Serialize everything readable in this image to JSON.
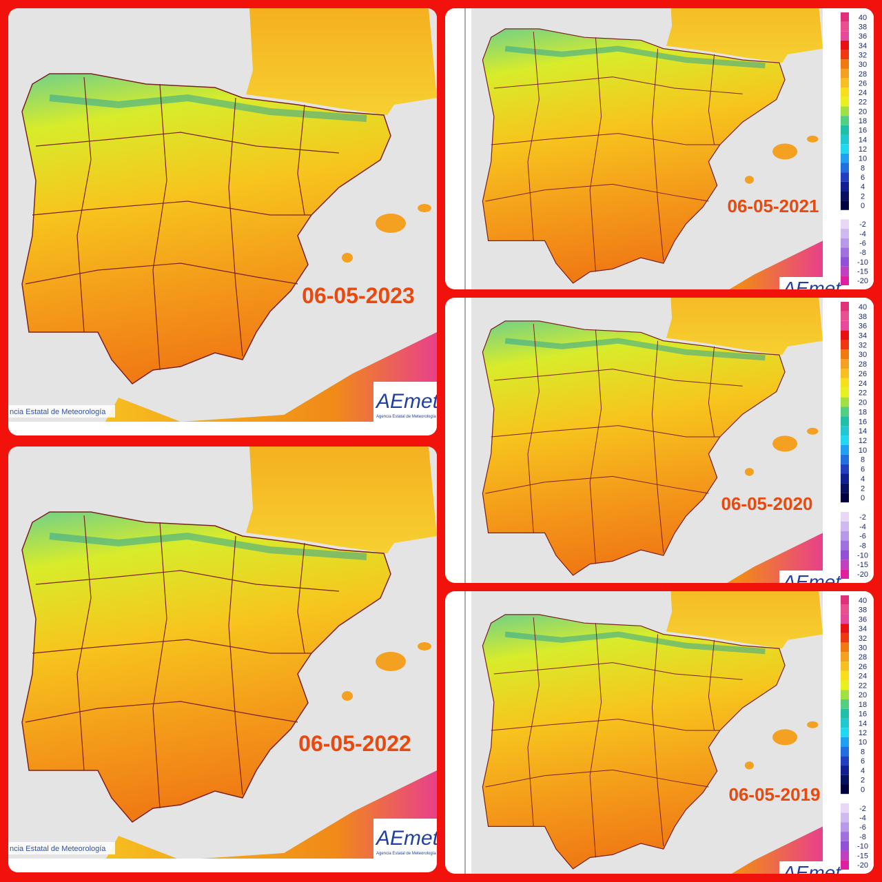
{
  "panels": [
    {
      "date": "06-05-2023"
    },
    {
      "date": "06-05-2022"
    },
    {
      "date": "06-05-2021"
    },
    {
      "date": "06-05-2020"
    },
    {
      "date": "06-05-2019"
    }
  ],
  "legend": {
    "labels": [
      "40",
      "38",
      "36",
      "34",
      "32",
      "30",
      "28",
      "26",
      "24",
      "22",
      "20",
      "18",
      "16",
      "14",
      "12",
      "10",
      "8",
      "6",
      "4",
      "2",
      "0",
      "-2",
      "-4",
      "-6",
      "-8",
      "-10",
      "-15",
      "-20"
    ],
    "colors": [
      "#e0307a",
      "#e8508f",
      "#e8489a",
      "#e81010",
      "#f03810",
      "#f07a10",
      "#f4a020",
      "#f7c020",
      "#f5e01a",
      "#e8f020",
      "#a0e040",
      "#50d080",
      "#20c0a8",
      "#20c8d0",
      "#20d8f0",
      "#20a0f0",
      "#2070e0",
      "#2040c0",
      "#102090",
      "#081060",
      "#000040",
      "#e8d8f8",
      "#d0b8f0",
      "#b898e8",
      "#a070e0",
      "#9050d8",
      "#c040c0",
      "#e020a0"
    ]
  },
  "logo": {
    "name": "AEmet",
    "subtitle": "Agencia Estatal de Meteorología"
  },
  "credit": "ncia Estatal de Meteorología"
}
